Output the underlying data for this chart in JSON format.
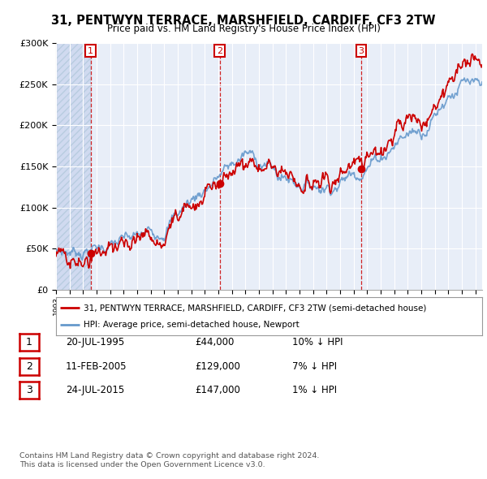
{
  "title": "31, PENTWYN TERRACE, MARSHFIELD, CARDIFF, CF3 2TW",
  "subtitle": "Price paid vs. HM Land Registry's House Price Index (HPI)",
  "legend_line1": "31, PENTWYN TERRACE, MARSHFIELD, CARDIFF, CF3 2TW (semi-detached house)",
  "legend_line2": "HPI: Average price, semi-detached house, Newport",
  "footer1": "Contains HM Land Registry data © Crown copyright and database right 2024.",
  "footer2": "This data is licensed under the Open Government Licence v3.0.",
  "sale_points": [
    {
      "label": "1",
      "date_num": 1995.55,
      "price": 44000
    },
    {
      "label": "2",
      "date_num": 2005.11,
      "price": 129000
    },
    {
      "label": "3",
      "date_num": 2015.55,
      "price": 147000
    }
  ],
  "table_rows": [
    [
      "1",
      "20-JUL-1995",
      "£44,000",
      "10% ↓ HPI"
    ],
    [
      "2",
      "11-FEB-2005",
      "£129,000",
      "7% ↓ HPI"
    ],
    [
      "3",
      "24-JUL-2015",
      "£147,000",
      "1% ↓ HPI"
    ]
  ],
  "hpi_color": "#6699cc",
  "price_color": "#cc0000",
  "dashed_color": "#cc0000",
  "background_plot": "#e8eef8",
  "background_hatch": "#d0daf0",
  "ylim": [
    0,
    300000
  ],
  "xlim_start": 1993.0,
  "xlim_end": 2024.5
}
